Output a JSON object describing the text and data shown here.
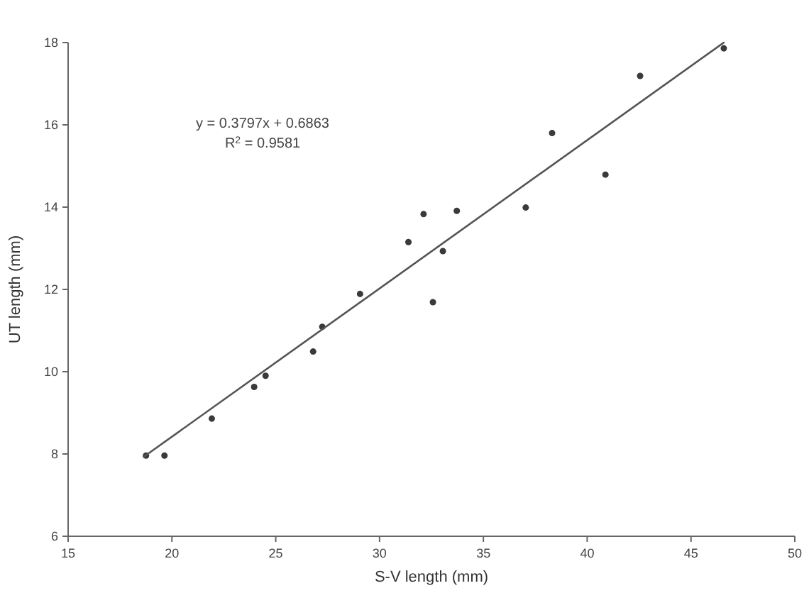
{
  "chart_data": {
    "type": "scatter",
    "xlabel": "S-V length (mm)",
    "ylabel": "UT length (mm)",
    "xlim": [
      15,
      50
    ],
    "xticks": [
      15,
      20,
      25,
      30,
      35,
      40,
      45,
      50
    ],
    "ylim": [
      6,
      18
    ],
    "yticks": [
      6,
      8,
      10,
      12,
      14,
      16,
      18
    ],
    "grid": false,
    "annotations": [
      "y = 0.3797x + 0.6863",
      "R$^{2}$ = 0.9581"
    ],
    "series": [
      {
        "marker": "circle",
        "color": "#3a3a3a",
        "x": [
          18.75,
          19.64,
          21.92,
          23.96,
          24.51,
          26.8,
          27.24,
          29.06,
          31.39,
          32.12,
          32.57,
          33.05,
          33.72,
          37.04,
          38.31,
          40.88,
          42.55,
          46.58
        ],
        "values": [
          7.96,
          7.96,
          8.86,
          9.63,
          9.9,
          10.49,
          11.09,
          11.89,
          13.15,
          13.83,
          11.69,
          12.93,
          13.91,
          13.99,
          15.8,
          14.79,
          17.19,
          17.86
        ]
      },
      {
        "type": "line",
        "color": "#555555",
        "line_style": "solid",
        "x": [
          18.64,
          46.58
        ],
        "values": [
          7.93,
          18
        ]
      }
    ]
  }
}
